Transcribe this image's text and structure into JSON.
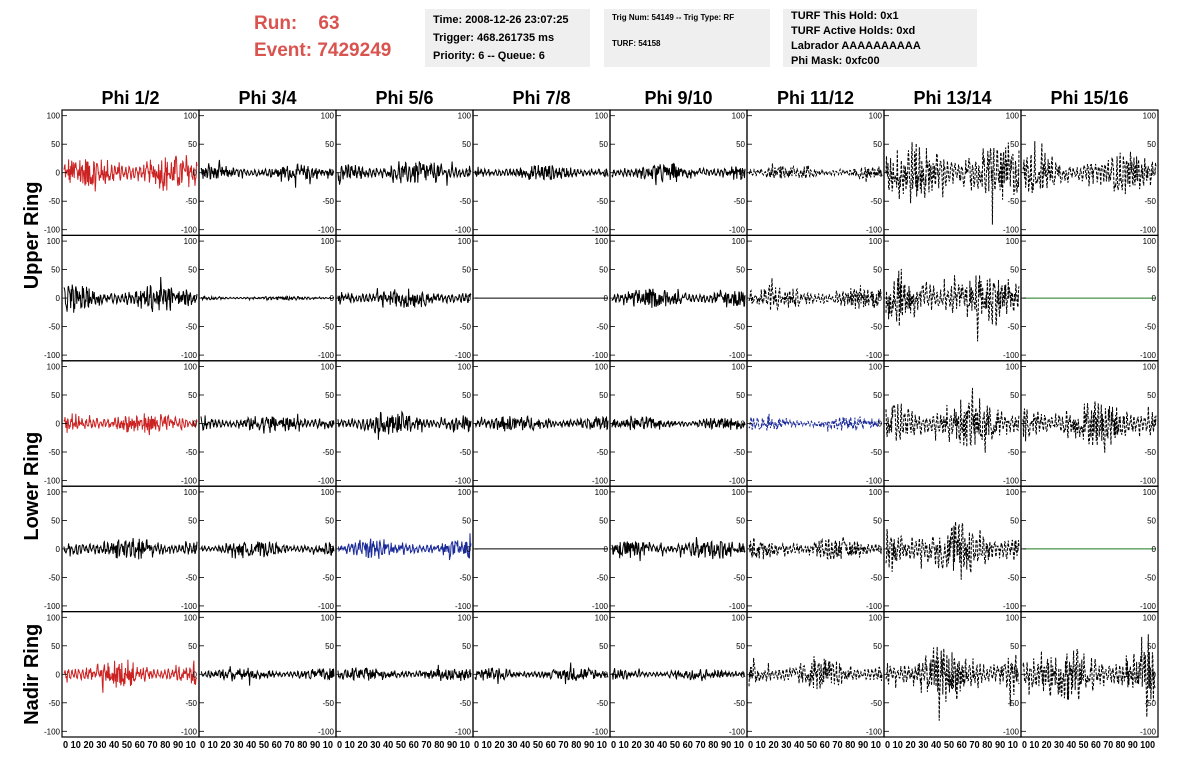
{
  "header": {
    "run_label": "Run:",
    "run_value": "63",
    "event_label": "Event:",
    "event_value": "7429249"
  },
  "info_time": {
    "time": "Time: 2008-12-26 23:07:25",
    "trigger": "Trigger: 468.261735 ms",
    "priority": "Priority: 6 -- Queue: 6"
  },
  "info_trig": {
    "trig": "Trig Num: 54149 -- Trig Type: RF",
    "turf": "TURF: 54158"
  },
  "info_turf": {
    "hold": "TURF This Hold: 0x1",
    "active": "TURF Active Holds: 0xd",
    "labrador": "Labrador AAAAAAAAAA",
    "phimask": "Phi Mask: 0xfc00"
  },
  "chart_data": {
    "type": "line",
    "columns": [
      "Phi 1/2",
      "Phi 3/4",
      "Phi 5/6",
      "Phi 7/8",
      "Phi 9/10",
      "Phi 11/12",
      "Phi 13/14",
      "Phi 15/16"
    ],
    "rows": [
      "Upper Ring",
      "Lower Ring",
      "Nadir Ring"
    ],
    "xlim": [
      0,
      100
    ],
    "ylim": [
      -110,
      110
    ],
    "y_ticks": [
      -100,
      -50,
      0,
      50,
      100
    ],
    "x_tick_labels": [
      "0 10 20 30 40 50 60 70 80 90 10",
      "0 10 20 30 40 50 60 70 80 90 10",
      "0 10 20 30 40 50 60 70 80 90 10",
      "0 10 20 30 40 50 60 70 80 90 10",
      "0 10 20 30 40 50 60 70 80 90 10",
      "0 10 20 30 40 50 60 70 80 90 10",
      "0 10 20 30 40 50 60 70 80 90 10",
      "0 10 20 30 40 50 60 70 80 90 100"
    ],
    "colors": {
      "red": "#cc2222",
      "black": "#000000",
      "blue": "#1a2a99",
      "green": "#1a7a1a"
    },
    "panels": [
      [
        {
          "c": "red",
          "a": 28,
          "s": "solid"
        },
        {
          "c": "black",
          "a": 12,
          "s": "solid"
        },
        {
          "c": "black",
          "a": 17,
          "s": "solid"
        },
        {
          "c": "black",
          "a": 12,
          "s": "solid"
        },
        {
          "c": "black",
          "a": 14,
          "s": "solid"
        },
        {
          "c": "black",
          "a": 10,
          "s": "dash"
        },
        {
          "c": "black",
          "a": 45,
          "s": "dash"
        },
        {
          "c": "black",
          "a": 30,
          "s": "dash"
        }
      ],
      [
        {
          "c": "black",
          "a": 20,
          "s": "solid"
        },
        {
          "c": "black",
          "a": 3,
          "s": "solid"
        },
        {
          "c": "black",
          "a": 15,
          "s": "solid"
        },
        {
          "c": "black",
          "a": 0,
          "s": "solid"
        },
        {
          "c": "black",
          "a": 15,
          "s": "solid"
        },
        {
          "c": "black",
          "a": 18,
          "s": "dash"
        },
        {
          "c": "black",
          "a": 40,
          "s": "dash"
        },
        {
          "c": "green",
          "a": 0,
          "s": "solid"
        }
      ],
      [
        {
          "c": "red",
          "a": 18,
          "s": "solid"
        },
        {
          "c": "black",
          "a": 14,
          "s": "solid"
        },
        {
          "c": "black",
          "a": 17,
          "s": "solid"
        },
        {
          "c": "black",
          "a": 12,
          "s": "solid"
        },
        {
          "c": "black",
          "a": 10,
          "s": "solid"
        },
        {
          "c": "blue",
          "a": 10,
          "s": "dash"
        },
        {
          "c": "black",
          "a": 38,
          "s": "dash"
        },
        {
          "c": "black",
          "a": 35,
          "s": "dash"
        }
      ],
      [
        {
          "c": "black",
          "a": 18,
          "s": "solid"
        },
        {
          "c": "black",
          "a": 12,
          "s": "solid"
        },
        {
          "c": "blue",
          "a": 14,
          "s": "solid"
        },
        {
          "c": "black",
          "a": 0,
          "s": "solid"
        },
        {
          "c": "black",
          "a": 15,
          "s": "solid"
        },
        {
          "c": "black",
          "a": 18,
          "s": "dash"
        },
        {
          "c": "black",
          "a": 40,
          "s": "dash"
        },
        {
          "c": "green",
          "a": 0,
          "s": "solid"
        }
      ],
      [
        {
          "c": "red",
          "a": 20,
          "s": "solid"
        },
        {
          "c": "black",
          "a": 10,
          "s": "solid"
        },
        {
          "c": "black",
          "a": 10,
          "s": "solid"
        },
        {
          "c": "black",
          "a": 10,
          "s": "solid"
        },
        {
          "c": "black",
          "a": 9,
          "s": "solid"
        },
        {
          "c": "black",
          "a": 22,
          "s": "dash"
        },
        {
          "c": "black",
          "a": 40,
          "s": "dash"
        },
        {
          "c": "black",
          "a": 42,
          "s": "dash"
        }
      ]
    ]
  }
}
